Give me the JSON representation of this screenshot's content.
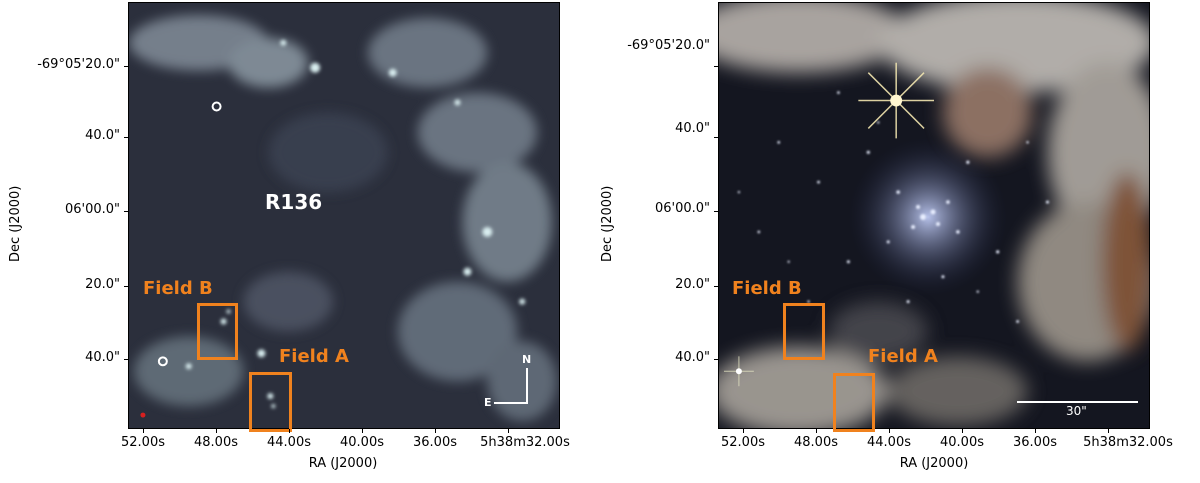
{
  "left_panel": {
    "cluster_label": "R136",
    "field_b_label": "Field B",
    "field_a_label": "Field A",
    "compass_n": "N",
    "compass_e": "E",
    "ylabel": "Dec (J2000)",
    "xlabel": "RA (J2000)",
    "yticks": [
      "-69°05'20.0\"",
      "40.0\"",
      "06'00.0\"",
      "20.0\"",
      "40.0\""
    ],
    "xticks": [
      "52.00s",
      "48.00s",
      "44.00s",
      "40.00s",
      "36.00s",
      "5h38m32.00s"
    ]
  },
  "right_panel": {
    "field_b_label": "Field B",
    "field_a_label": "Field A",
    "scalebar_label": "30\"",
    "ylabel": "Dec (J2000)",
    "xlabel": "RA (J2000)",
    "yticks": [
      "-69°05'20.0\"",
      "40.0\"",
      "06'00.0\"",
      "20.0\"",
      "40.0\""
    ],
    "xticks": [
      "52.00s",
      "48.00s",
      "44.00s",
      "40.00s",
      "36.00s",
      "5h38m32.00s"
    ]
  },
  "colors": {
    "field_box": "#f0821e"
  }
}
